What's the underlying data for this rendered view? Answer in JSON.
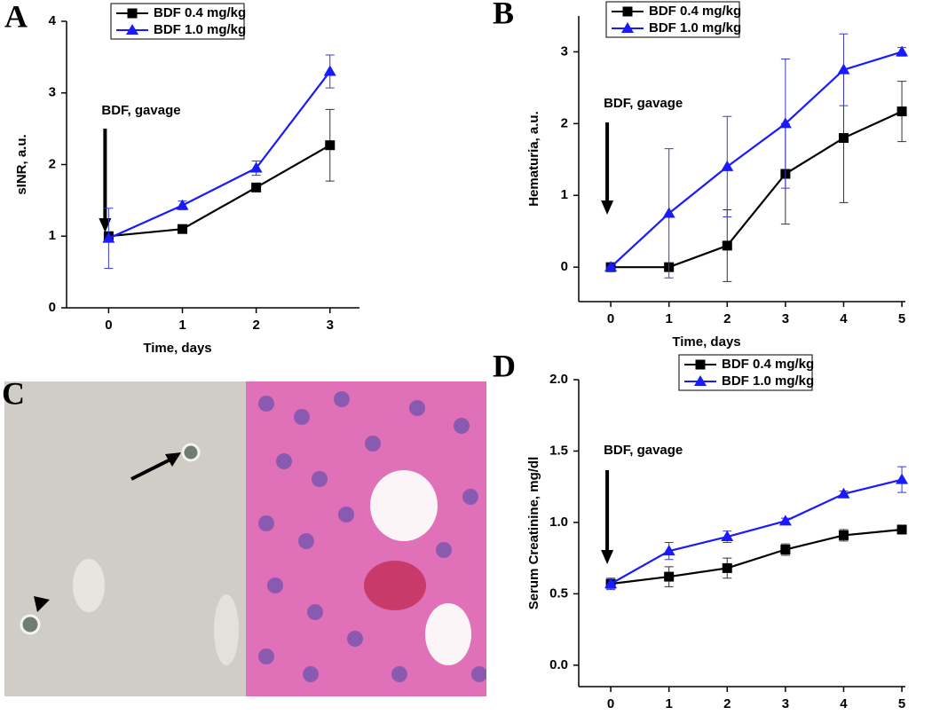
{
  "image_panel": {
    "label": "C"
  },
  "chart_data": [
    {
      "type": "line",
      "panel_label": "A",
      "x_label": "Time, days",
      "y_label": "sINR, a.u.",
      "annotation": {
        "text": "BDF, gavage",
        "x": 0
      },
      "x": [
        0,
        1,
        2,
        3
      ],
      "xlim": [
        -0.57,
        3.4
      ],
      "xticks": [
        0,
        1,
        2,
        3
      ],
      "ylim": [
        0,
        4
      ],
      "yticks": [
        0,
        1,
        2,
        3,
        4
      ],
      "legend": "upper left",
      "series": [
        {
          "name": "BDF 0.4 mg/kg",
          "color": "#000000",
          "marker": "square",
          "values": [
            1.0,
            1.1,
            1.68,
            2.27
          ],
          "errors": [
            0.05,
            0.03,
            0.05,
            0.5
          ]
        },
        {
          "name": "BDF 1.0 mg/kg",
          "color": "#1a1aff",
          "marker": "triangle",
          "values": [
            0.97,
            1.43,
            1.95,
            3.3
          ],
          "errors": [
            0.42,
            0.06,
            0.1,
            0.23
          ]
        }
      ]
    },
    {
      "type": "line",
      "panel_label": "B",
      "x_label": "Time, days",
      "y_label": "Hematuria, a.u.",
      "annotation": {
        "text": "BDF, gavage",
        "x": 0
      },
      "x": [
        0,
        1,
        2,
        3,
        4,
        5
      ],
      "xlim": [
        -0.55,
        5.06
      ],
      "xticks": [
        0,
        1,
        2,
        3,
        4,
        5
      ],
      "ylim": [
        -0.48,
        3.5
      ],
      "yticks": [
        0,
        1,
        2,
        3
      ],
      "legend": "upper left",
      "series": [
        {
          "name": "BDF 0.4 mg/kg",
          "color": "#000000",
          "marker": "square",
          "values": [
            0,
            0,
            0.3,
            1.3,
            1.8,
            2.17
          ],
          "errors": [
            0,
            0,
            0.5,
            0.7,
            0.9,
            0.42
          ]
        },
        {
          "name": "BDF 1.0 mg/kg",
          "color": "#1a1aff",
          "marker": "triangle",
          "values": [
            0,
            0.75,
            1.4,
            2.0,
            2.75,
            3.0
          ],
          "errors": [
            0,
            0.9,
            0.7,
            0.9,
            0.5,
            0.06
          ]
        }
      ]
    },
    {
      "type": "line",
      "panel_label": "D",
      "x_label": "Time, days",
      "y_label": "Serum Creatinine, mg/dl",
      "annotation": {
        "text": "BDF, gavage",
        "x": 0
      },
      "x": [
        0,
        1,
        2,
        3,
        4,
        5
      ],
      "xlim": [
        -0.55,
        5.06
      ],
      "xticks": [
        0,
        1,
        2,
        3,
        4,
        5
      ],
      "ylim": [
        -0.15,
        2.0
      ],
      "yticks": [
        {
          "value": 0,
          "label": "0.0"
        },
        0.5,
        {
          "value": 1,
          "label": "1.0"
        },
        1.5,
        {
          "value": 2,
          "label": "2.0"
        }
      ],
      "legend": "upper center",
      "series": [
        {
          "name": "BDF 0.4 mg/kg",
          "color": "#000000",
          "marker": "square",
          "values": [
            0.57,
            0.62,
            0.68,
            0.81,
            0.91,
            0.95
          ],
          "errors": [
            0.03,
            0.07,
            0.07,
            0.04,
            0.04,
            0.03
          ]
        },
        {
          "name": "BDF 1.0 mg/kg",
          "color": "#1a1aff",
          "marker": "triangle",
          "values": [
            0.57,
            0.8,
            0.9,
            1.01,
            1.2,
            1.3
          ],
          "errors": [
            0.04,
            0.06,
            0.04,
            0.02,
            0.02,
            0.09
          ]
        }
      ]
    }
  ]
}
